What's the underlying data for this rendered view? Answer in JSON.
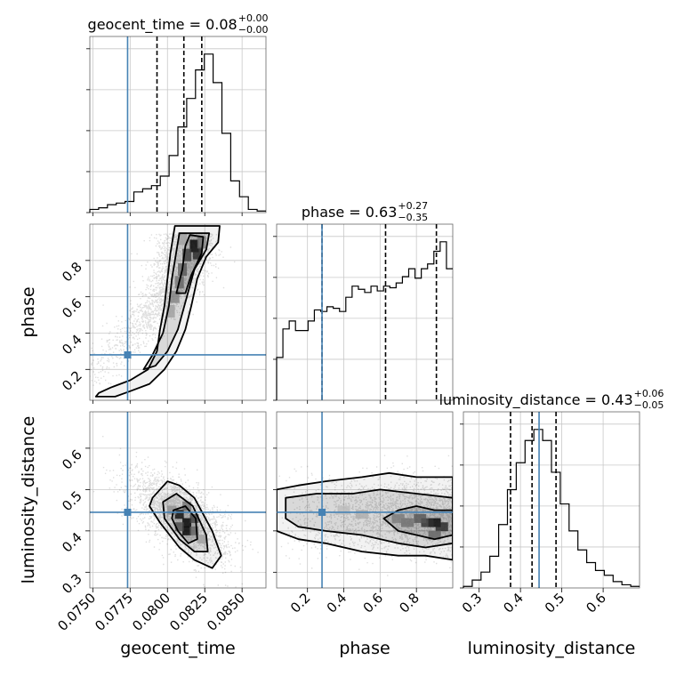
{
  "chart_data": {
    "type": "corner",
    "parameters": [
      "geocent_time",
      "phase",
      "luminosity_distance"
    ],
    "truths": {
      "geocent_time": 0.07733,
      "phase": 0.28,
      "luminosity_distance": 0.445
    },
    "truth_color": "#4682b4",
    "ranges": {
      "geocent_time": [
        0.0748,
        0.0866
      ],
      "phase": [
        0.03,
        1.0
      ],
      "luminosity_distance": [
        0.262,
        0.688
      ]
    },
    "titles": [
      {
        "param": "geocent_time",
        "label": "geocent_time = 0.08",
        "sup": "+0.00",
        "sub": "−0.00"
      },
      {
        "param": "phase",
        "label": "phase = 0.63",
        "sup": "+0.27",
        "sub": "−0.35"
      },
      {
        "param": "luminosity_distance",
        "label": "luminosity_distance = 0.43",
        "sup": "+0.06",
        "sub": "−0.05"
      }
    ],
    "quantiles": {
      "geocent_time": [
        0.0793,
        0.0811,
        0.0823
      ],
      "phase": [
        0.28,
        0.63,
        0.91
      ],
      "luminosity_distance": [
        0.376,
        0.428,
        0.486
      ]
    },
    "axis_labels": {
      "geocent_time": "geocent_time",
      "phase": "phase",
      "luminosity_distance": "luminosity_distance"
    },
    "ticks": {
      "geocent_time": [
        "0.0750",
        "0.0775",
        "0.0800",
        "0.0825",
        "0.0850"
      ],
      "phase": [
        "0.2",
        "0.4",
        "0.6",
        "0.8"
      ],
      "luminosity_distance": [
        "0.3",
        "0.4",
        "0.5",
        "0.6"
      ],
      "luminosity_distance_y": [
        "0.3",
        "0.4",
        "0.5",
        "0.6"
      ],
      "phase_y": [
        "0.2",
        "0.4",
        "0.6",
        "0.8"
      ]
    },
    "histograms": {
      "geocent_time": [
        0.02,
        0.03,
        0.05,
        0.06,
        0.07,
        0.13,
        0.15,
        0.17,
        0.23,
        0.36,
        0.54,
        0.72,
        0.9,
        1.0,
        0.82,
        0.5,
        0.2,
        0.1,
        0.02,
        0.01
      ],
      "phase": [
        0.27,
        0.45,
        0.5,
        0.44,
        0.44,
        0.5,
        0.57,
        0.56,
        0.59,
        0.58,
        0.56,
        0.65,
        0.72,
        0.7,
        0.68,
        0.72,
        0.69,
        0.72,
        0.71,
        0.74,
        0.78,
        0.83,
        0.77,
        0.83,
        0.86,
        0.94,
        1.0,
        0.83
      ],
      "luminosity_distance": [
        0.01,
        0.05,
        0.1,
        0.2,
        0.4,
        0.62,
        0.79,
        0.93,
        1.0,
        0.93,
        0.73,
        0.53,
        0.36,
        0.24,
        0.16,
        0.11,
        0.08,
        0.04,
        0.02,
        0.01
      ]
    },
    "grid": true
  }
}
